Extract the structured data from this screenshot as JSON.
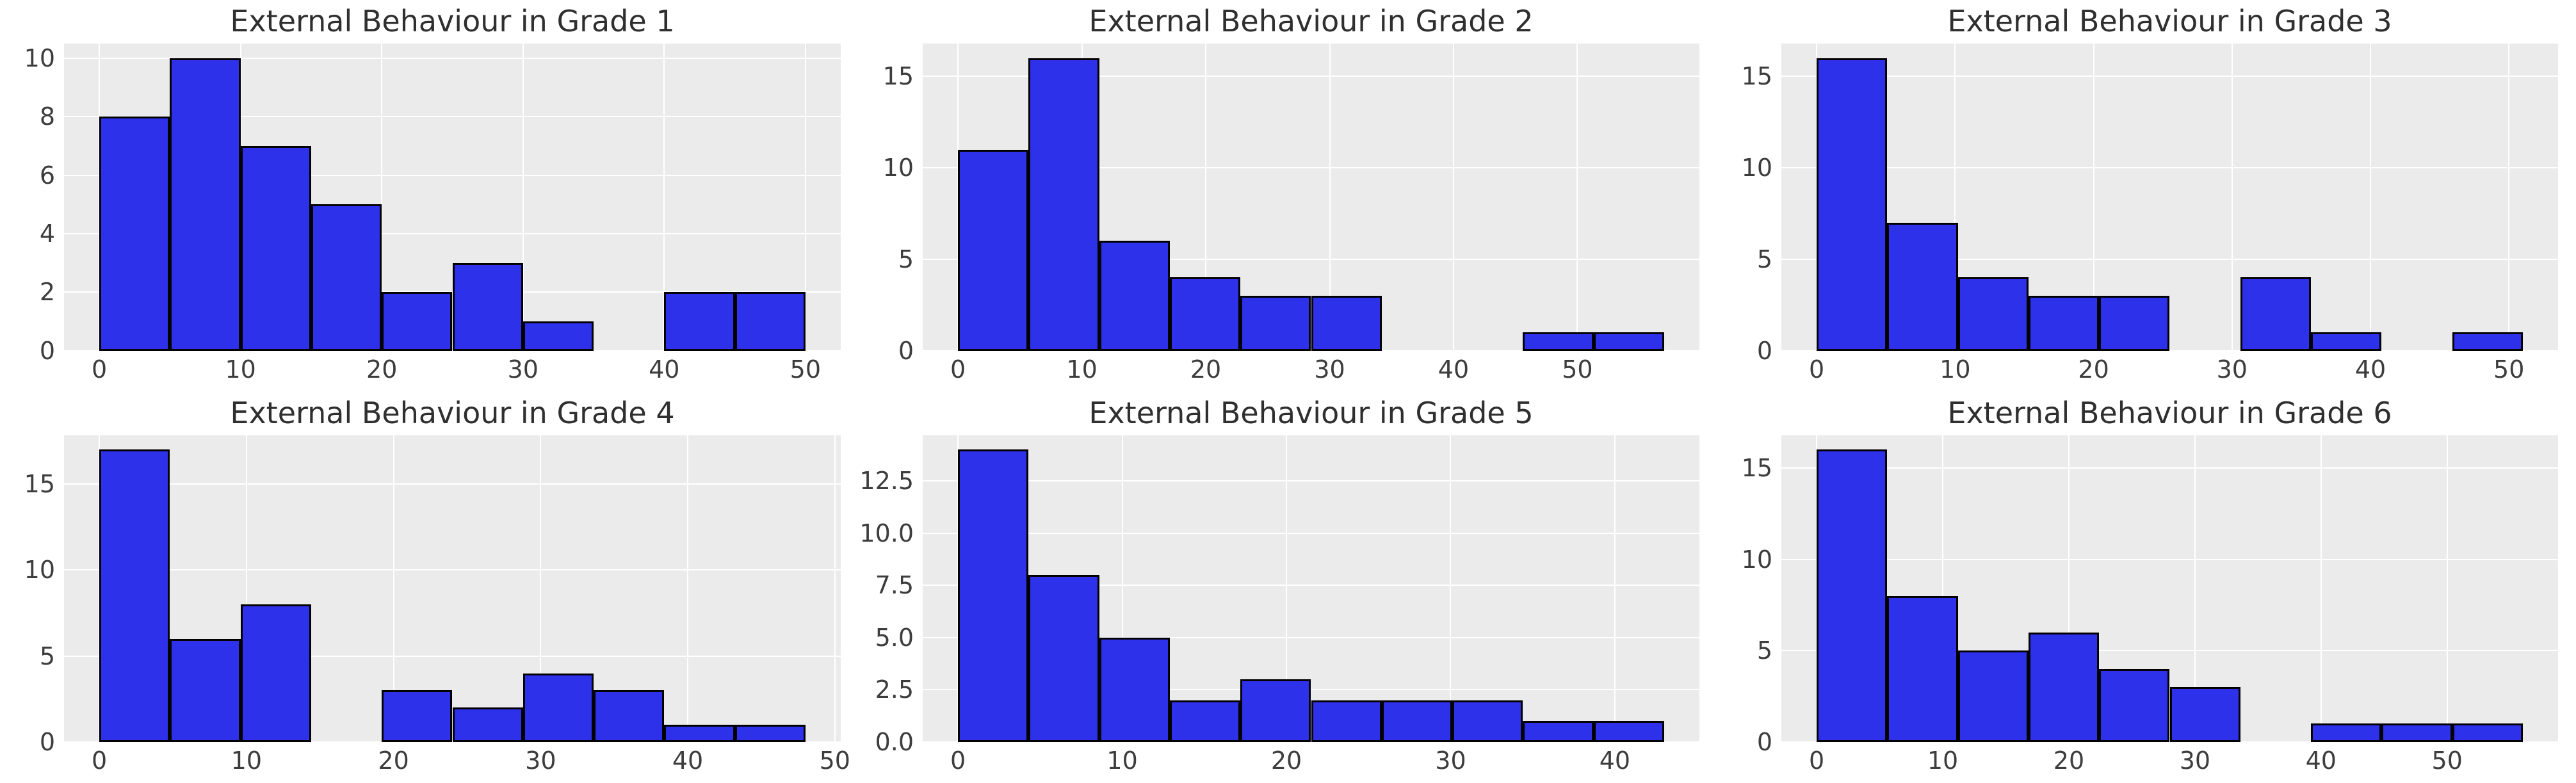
{
  "figure": {
    "background_color": "#ffffff",
    "plot_background_color": "#ebebeb",
    "grid_color": "#ffffff",
    "bar_fill_color": "#2e31ea",
    "bar_edge_color": "#000000",
    "title_color": "#2f2f2f",
    "tick_color": "#3d3d3d",
    "layout": "2 rows x 3 columns"
  },
  "chart_data": [
    {
      "type": "bar",
      "subtype": "histogram",
      "title": "External Behaviour in Grade 1",
      "xlabel": "",
      "ylabel": "",
      "grid": true,
      "bin_edges": [
        0,
        5,
        10,
        15,
        20,
        25,
        30,
        35,
        40,
        45,
        50
      ],
      "values": [
        8,
        10,
        7,
        5,
        2,
        3,
        1,
        0,
        2,
        2
      ],
      "xticks": [
        0,
        10,
        20,
        30,
        40,
        50
      ],
      "xtick_labels": [
        "0",
        "10",
        "20",
        "30",
        "40",
        "50"
      ],
      "yticks": [
        0,
        2,
        4,
        6,
        8,
        10
      ],
      "ytick_labels": [
        "0",
        "2",
        "4",
        "6",
        "8",
        "10"
      ],
      "xlim": [
        -2.5,
        52.5
      ],
      "ylim": [
        0,
        10.5
      ]
    },
    {
      "type": "bar",
      "subtype": "histogram",
      "title": "External Behaviour in Grade 2",
      "xlabel": "",
      "ylabel": "",
      "grid": true,
      "bin_edges": [
        0,
        5.7,
        11.4,
        17.1,
        22.8,
        28.5,
        34.2,
        39.9,
        45.6,
        51.3,
        57
      ],
      "values": [
        11,
        16,
        6,
        4,
        3,
        3,
        0,
        0,
        1,
        1
      ],
      "xticks": [
        0,
        10,
        20,
        30,
        40,
        50
      ],
      "xtick_labels": [
        "0",
        "10",
        "20",
        "30",
        "40",
        "50"
      ],
      "yticks": [
        0,
        5,
        10,
        15
      ],
      "ytick_labels": [
        "0",
        "5",
        "10",
        "15"
      ],
      "xlim": [
        -2.85,
        59.85
      ],
      "ylim": [
        0,
        16.8
      ]
    },
    {
      "type": "bar",
      "subtype": "histogram",
      "title": "External Behaviour in Grade 3",
      "xlabel": "",
      "ylabel": "",
      "grid": true,
      "bin_edges": [
        0,
        5.1,
        10.2,
        15.3,
        20.4,
        25.5,
        30.6,
        35.7,
        40.8,
        45.9,
        51
      ],
      "values": [
        16,
        7,
        4,
        3,
        3,
        0,
        4,
        1,
        0,
        1
      ],
      "xticks": [
        0,
        10,
        20,
        30,
        40,
        50
      ],
      "xtick_labels": [
        "0",
        "10",
        "20",
        "30",
        "40",
        "50"
      ],
      "yticks": [
        0,
        5,
        10,
        15
      ],
      "ytick_labels": [
        "0",
        "5",
        "10",
        "15"
      ],
      "xlim": [
        -2.55,
        53.55
      ],
      "ylim": [
        0,
        16.8
      ]
    },
    {
      "type": "bar",
      "subtype": "histogram",
      "title": "External Behaviour in Grade 4",
      "xlabel": "",
      "ylabel": "",
      "grid": true,
      "bin_edges": [
        0,
        4.8,
        9.6,
        14.4,
        19.2,
        24,
        28.8,
        33.6,
        38.4,
        43.2,
        48
      ],
      "values": [
        17,
        6,
        8,
        0,
        3,
        2,
        4,
        3,
        1,
        1
      ],
      "xticks": [
        0,
        10,
        20,
        30,
        40,
        50
      ],
      "xtick_labels": [
        "0",
        "10",
        "20",
        "30",
        "40",
        "50"
      ],
      "yticks": [
        0,
        5,
        10,
        15
      ],
      "ytick_labels": [
        "0",
        "5",
        "10",
        "15"
      ],
      "xlim": [
        -2.4,
        50.4
      ],
      "ylim": [
        0,
        17.85
      ]
    },
    {
      "type": "bar",
      "subtype": "histogram",
      "title": "External Behaviour in Grade 5",
      "xlabel": "",
      "ylabel": "",
      "grid": true,
      "bin_edges": [
        0,
        4.3,
        8.6,
        12.9,
        17.2,
        21.5,
        25.8,
        30.1,
        34.4,
        38.7,
        43
      ],
      "values": [
        14,
        8,
        5,
        2,
        3,
        2,
        2,
        2,
        1,
        1
      ],
      "xticks": [
        0,
        10,
        20,
        30,
        40
      ],
      "xtick_labels": [
        "0",
        "10",
        "20",
        "30",
        "40"
      ],
      "yticks": [
        0,
        2.5,
        5,
        7.5,
        10,
        12.5
      ],
      "ytick_labels": [
        "0.0",
        "2.5",
        "5.0",
        "7.5",
        "10.0",
        "12.5"
      ],
      "xlim": [
        -2.15,
        45.15
      ],
      "ylim": [
        0,
        14.7
      ]
    },
    {
      "type": "bar",
      "subtype": "histogram",
      "title": "External Behaviour in Grade 6",
      "xlabel": "",
      "ylabel": "",
      "grid": true,
      "bin_edges": [
        0,
        5.6,
        11.2,
        16.8,
        22.4,
        28,
        33.6,
        39.2,
        44.8,
        50.4,
        56
      ],
      "values": [
        16,
        8,
        5,
        6,
        4,
        3,
        0,
        1,
        1,
        1
      ],
      "xticks": [
        0,
        10,
        20,
        30,
        40,
        50
      ],
      "xtick_labels": [
        "0",
        "10",
        "20",
        "30",
        "40",
        "50"
      ],
      "yticks": [
        0,
        5,
        10,
        15
      ],
      "ytick_labels": [
        "0",
        "5",
        "10",
        "15"
      ],
      "xlim": [
        -2.8,
        58.8
      ],
      "ylim": [
        0,
        16.8
      ]
    }
  ]
}
